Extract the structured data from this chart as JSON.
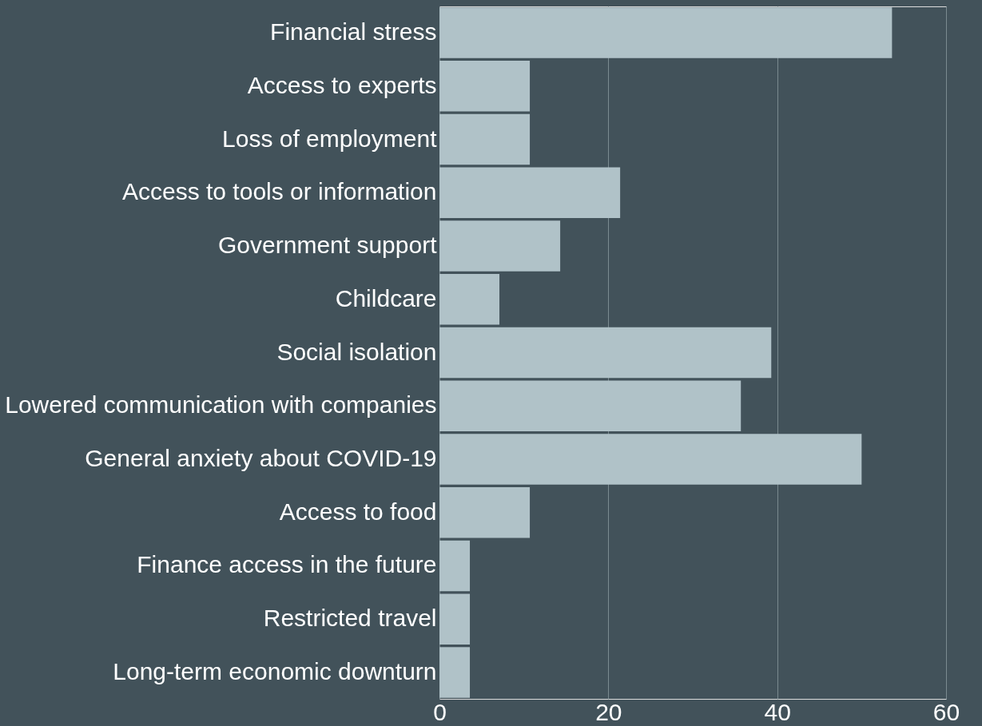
{
  "chart_data": {
    "type": "bar",
    "orientation": "horizontal",
    "categories": [
      "Financial stress",
      "Access to experts",
      "Loss of employment",
      "Access to tools or information",
      "Government support",
      "Childcare",
      "Social isolation",
      "Lowered communication with companies",
      "General anxiety about COVID-19",
      "Access to food",
      "Finance access in the future",
      "Restricted travel",
      "Long-term economic downturn"
    ],
    "values": [
      53.6,
      10.7,
      10.7,
      21.4,
      14.3,
      7.1,
      39.3,
      35.7,
      50,
      10.7,
      3.6,
      3.6,
      3.6
    ],
    "color": "#b0c2c8",
    "xlim": [
      0,
      60
    ],
    "xticks": [
      0,
      20,
      40,
      60
    ],
    "grid": "x"
  }
}
